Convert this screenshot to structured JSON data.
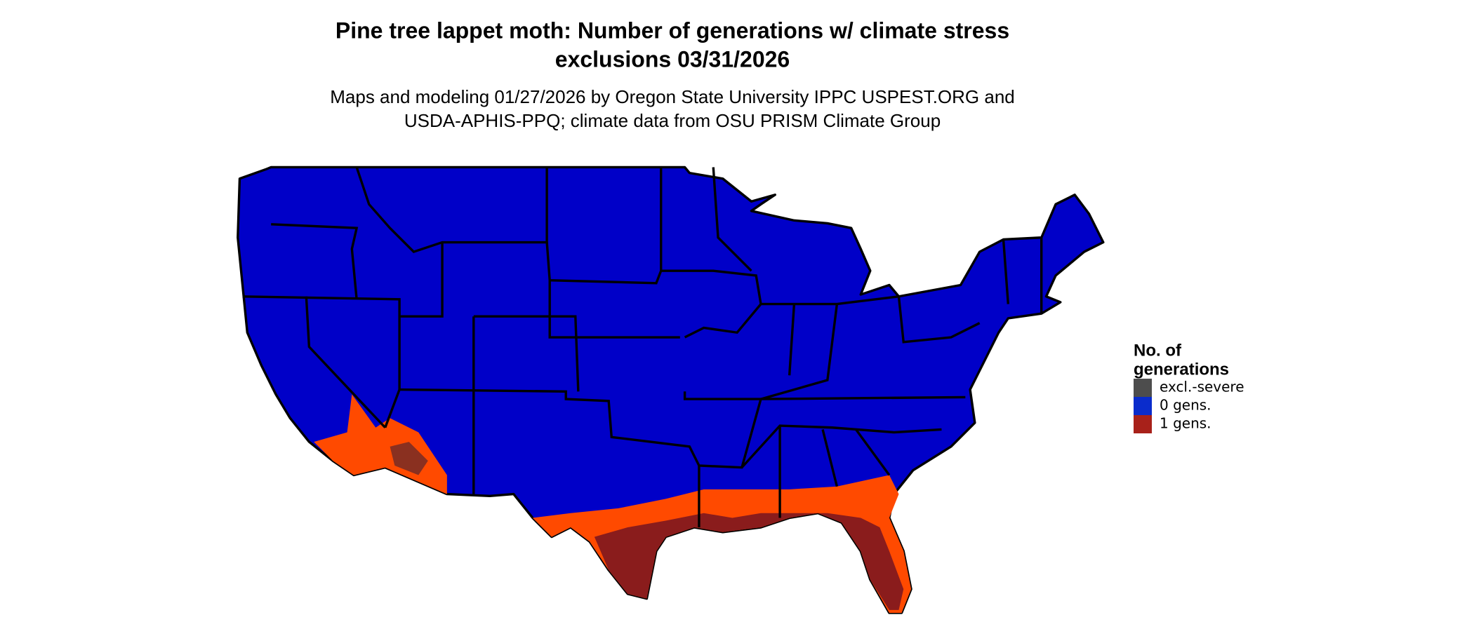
{
  "header": {
    "title": [
      "Pine tree lappet moth: Number of generations w/ climate stress",
      "exclusions 03/31/2026"
    ],
    "subtitle": [
      "Maps and modeling 01/27/2026 by Oregon State University IPPC USPEST.ORG and",
      "USDA-APHIS-PPQ; climate data from OSU PRISM Climate Group"
    ]
  },
  "legend": {
    "title": [
      "No. of",
      "generations"
    ],
    "items": [
      {
        "label": "excl.-severe",
        "color": "#4d4d4d"
      },
      {
        "label": "0 gens.",
        "color": "#0a2ccc"
      },
      {
        "label": "1 gens.",
        "color": "#a8211a"
      }
    ]
  }
}
